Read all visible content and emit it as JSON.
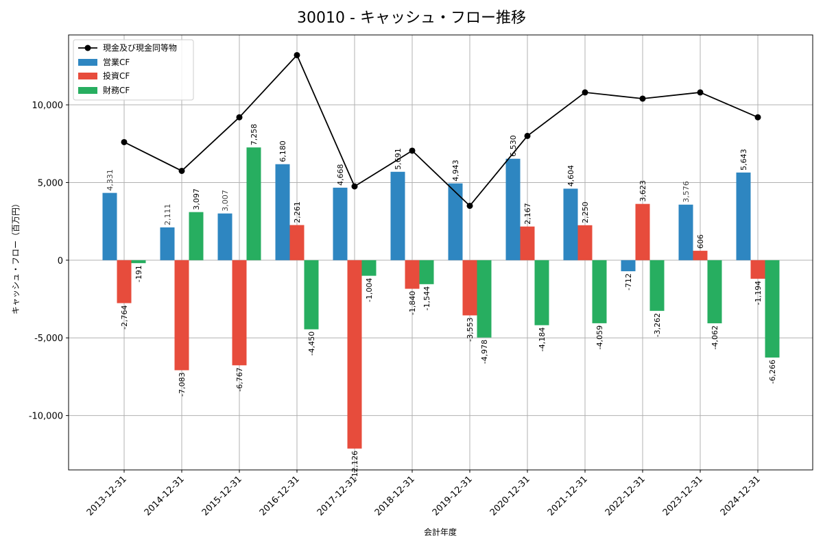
{
  "chart_data": {
    "type": "bar",
    "title": "30010 - キャッシュ・フロー推移",
    "xlabel": "会計年度",
    "ylabel": "キャッシュ・フロー（百万円）",
    "ylim": [
      -13500,
      14500
    ],
    "yticks": [
      -10000,
      -5000,
      0,
      5000,
      10000
    ],
    "ytick_labels": [
      "-10,000",
      "-5,000",
      "0",
      "5,000",
      "10,000"
    ],
    "grid": true,
    "legend_position": "top-left",
    "categories": [
      "2013-12-31",
      "2014-12-31",
      "2015-12-31",
      "2016-12-31",
      "2017-12-31",
      "2018-12-31",
      "2019-12-31",
      "2020-12-31",
      "2021-12-31",
      "2022-12-31",
      "2023-12-31",
      "2024-12-31"
    ],
    "series": [
      {
        "name": "営業CF",
        "kind": "bar",
        "color": "#2e86c1",
        "values": [
          4331,
          2111,
          3007,
          6180,
          4668,
          5691,
          4943,
          6530,
          4604,
          -712,
          3576,
          5643
        ],
        "labels": [
          "4,331",
          "2,111",
          "3,007",
          "6,180",
          "4,668",
          "5,691",
          "4,943",
          "6,530",
          "4,604",
          "-712",
          "3,576",
          "5,643"
        ]
      },
      {
        "name": "投資CF",
        "kind": "bar",
        "color": "#e74c3c",
        "values": [
          -2764,
          -7083,
          -6767,
          2261,
          -12126,
          -1840,
          -3553,
          2167,
          2250,
          3623,
          606,
          -1194
        ],
        "labels": [
          "-2,764",
          "-7,083",
          "-6,767",
          "2,261",
          "-12,126",
          "-1,840",
          "-3,553",
          "2,167",
          "2,250",
          "3,623",
          "606",
          "-1,194"
        ]
      },
      {
        "name": "財務CF",
        "kind": "bar",
        "color": "#27ae60",
        "values": [
          -191,
          3097,
          7258,
          -4450,
          -1004,
          -1544,
          -4978,
          -4184,
          -4059,
          -3262,
          -4062,
          -6266
        ],
        "labels": [
          "-191",
          "3,097",
          "7,258",
          "-4,450",
          "-1,004",
          "-1,544",
          "-4,978",
          "-4,184",
          "-4,059",
          "-3,262",
          "-4,062",
          "-6,266"
        ]
      },
      {
        "name": "現金及び現金同等物",
        "kind": "line",
        "color": "#000000",
        "values": [
          7600,
          5750,
          9200,
          13200,
          4750,
          7050,
          3500,
          8000,
          10800,
          10400,
          10800,
          9200
        ]
      }
    ]
  }
}
